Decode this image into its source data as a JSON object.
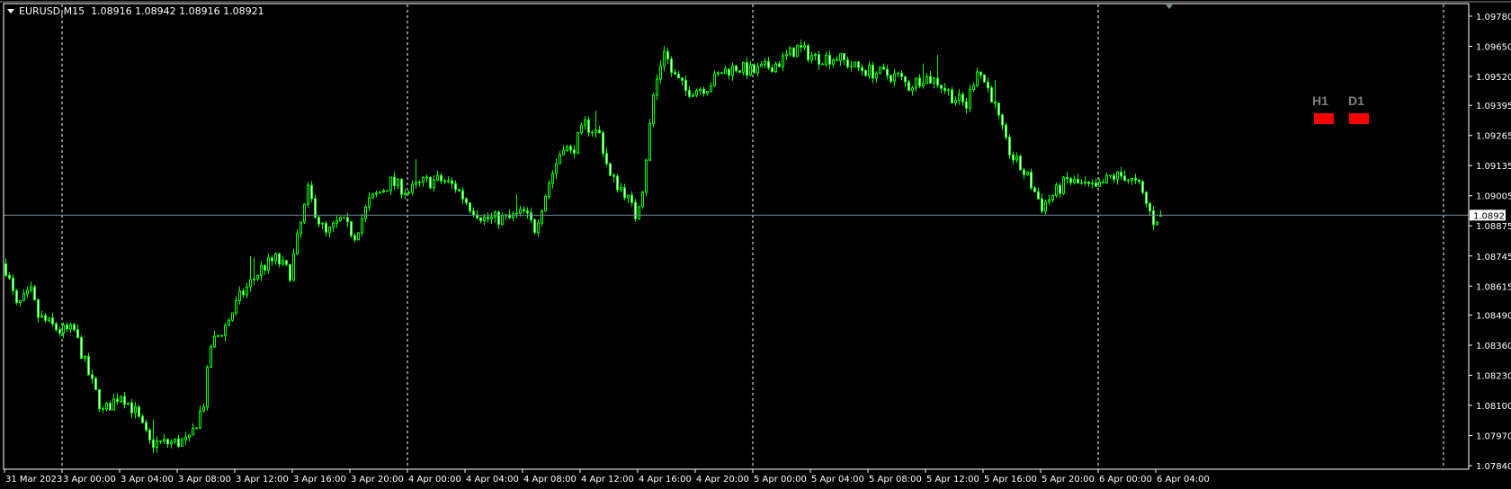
{
  "header": {
    "symbol": "EURUSD,M15",
    "ohlc": "1.08916 1.08942 1.08916 1.08921"
  },
  "indicators": [
    {
      "label": "H1",
      "color": "#ff0000"
    },
    {
      "label": "D1",
      "color": "#ff0000"
    }
  ],
  "colors": {
    "background": "#000000",
    "candle": "#00ff00",
    "bull_body": "#000000",
    "bear_body": "#ffffff",
    "grid": "#ffffff",
    "price_line": "#778899"
  },
  "chart_data": {
    "type": "candlestick",
    "symbol": "EURUSD",
    "timeframe": "M15",
    "ylim": [
      1.0784,
      1.0978
    ],
    "y_ticks": [
      "1.09780",
      "1.09650",
      "1.09520",
      "1.09395",
      "1.09265",
      "1.09135",
      "1.09005",
      "1.08875",
      "1.08745",
      "1.08615",
      "1.08490",
      "1.08360",
      "1.08230",
      "1.08100",
      "1.07970",
      "1.07840"
    ],
    "x_ticks": [
      "31 Mar 2023",
      "3 Apr 00:00",
      "3 Apr 04:00",
      "3 Apr 08:00",
      "3 Apr 12:00",
      "3 Apr 16:00",
      "3 Apr 20:00",
      "4 Apr 00:00",
      "4 Apr 04:00",
      "4 Apr 08:00",
      "4 Apr 12:00",
      "4 Apr 16:00",
      "4 Apr 20:00",
      "5 Apr 00:00",
      "5 Apr 04:00",
      "5 Apr 08:00",
      "5 Apr 12:00",
      "5 Apr 16:00",
      "5 Apr 20:00",
      "6 Apr 00:00",
      "6 Apr 04:00"
    ],
    "current_price": "1.08921",
    "last_bar": {
      "open": 1.08916,
      "high": 1.08942,
      "low": 1.08916,
      "close": 1.08921
    },
    "close_path": [
      [
        "2023-03-31 20:00",
        1.08691
      ],
      [
        "2023-03-31 20:45",
        1.08525
      ],
      [
        "2023-03-31 21:45",
        1.08587
      ],
      [
        "2023-03-31 22:15",
        1.08484
      ],
      [
        "2023-03-31 23:45",
        1.08422
      ],
      [
        "2023-04-03 00:45",
        1.08422
      ],
      [
        "2023-04-03 01:45",
        1.08235
      ],
      [
        "2023-04-03 02:45",
        1.0807
      ],
      [
        "2023-04-03 04:00",
        1.08152
      ],
      [
        "2023-04-03 05:00",
        1.0807
      ],
      [
        "2023-04-03 06:00",
        1.07937
      ],
      [
        "2023-04-03 07:15",
        1.07937
      ],
      [
        "2023-04-03 08:45",
        1.07945
      ],
      [
        "2023-04-03 09:45",
        1.08111
      ],
      [
        "2023-04-03 10:15",
        1.08359
      ],
      [
        "2023-04-03 11:15",
        1.08442
      ],
      [
        "2023-04-03 12:15",
        1.08566
      ],
      [
        "2023-04-03 13:45",
        1.08691
      ],
      [
        "2023-04-03 14:45",
        1.08732
      ],
      [
        "2023-04-03 15:45",
        1.0867
      ],
      [
        "2023-04-03 16:15",
        1.08815
      ],
      [
        "2023-04-03 17:00",
        1.09022
      ],
      [
        "2023-04-03 17:45",
        1.08898
      ],
      [
        "2023-04-03 18:15",
        1.08836
      ],
      [
        "2023-04-03 19:15",
        1.08898
      ],
      [
        "2023-04-03 20:15",
        1.08836
      ],
      [
        "2023-04-03 21:15",
        1.0898
      ],
      [
        "2023-04-03 22:45",
        1.09063
      ],
      [
        "2023-04-04 00:00",
        1.09022
      ],
      [
        "2023-04-04 01:00",
        1.09063
      ],
      [
        "2023-04-04 02:15",
        1.09072
      ],
      [
        "2023-04-04 03:15",
        1.09043
      ],
      [
        "2023-04-04 04:15",
        1.0896
      ],
      [
        "2023-04-04 05:15",
        1.08906
      ],
      [
        "2023-04-04 07:00",
        1.08906
      ],
      [
        "2023-04-04 08:00",
        1.08931
      ],
      [
        "2023-04-04 08:45",
        1.08865
      ],
      [
        "2023-04-04 09:45",
        1.09063
      ],
      [
        "2023-04-04 10:45",
        1.09229
      ],
      [
        "2023-04-04 11:15",
        1.09187
      ],
      [
        "2023-04-04 12:15",
        1.09312
      ],
      [
        "2023-04-04 13:15",
        1.0927
      ],
      [
        "2023-04-04 14:00",
        1.09084
      ],
      [
        "2023-04-04 15:00",
        1.09022
      ],
      [
        "2023-04-04 15:45",
        1.08918
      ],
      [
        "2023-04-04 16:15",
        1.09043
      ],
      [
        "2023-04-04 17:00",
        1.09436
      ],
      [
        "2023-04-04 17:45",
        1.09643
      ],
      [
        "2023-04-04 18:15",
        1.09539
      ],
      [
        "2023-04-04 19:15",
        1.09457
      ],
      [
        "2023-04-04 20:45",
        1.09477
      ],
      [
        "2023-04-04 21:45",
        1.09539
      ],
      [
        "2023-04-04 22:45",
        1.0956
      ],
      [
        "2023-04-05 00:00",
        1.09539
      ],
      [
        "2023-04-05 01:45",
        1.09581
      ],
      [
        "2023-04-05 03:00",
        1.09643
      ],
      [
        "2023-04-05 04:15",
        1.09601
      ],
      [
        "2023-04-05 05:45",
        1.09601
      ],
      [
        "2023-04-05 07:00",
        1.0956
      ],
      [
        "2023-04-05 08:15",
        1.09539
      ],
      [
        "2023-04-05 10:00",
        1.09519
      ],
      [
        "2023-04-05 10:45",
        1.09477
      ],
      [
        "2023-04-05 11:45",
        1.09519
      ],
      [
        "2023-04-05 12:45",
        1.09498
      ],
      [
        "2023-04-05 13:45",
        1.09436
      ],
      [
        "2023-04-05 14:45",
        1.09394
      ],
      [
        "2023-04-05 15:30",
        1.0956
      ],
      [
        "2023-04-05 16:30",
        1.09436
      ],
      [
        "2023-04-05 17:30",
        1.09229
      ],
      [
        "2023-04-05 18:00",
        1.09167
      ],
      [
        "2023-04-05 19:00",
        1.09084
      ],
      [
        "2023-04-05 20:00",
        1.0896
      ],
      [
        "2023-04-05 21:00",
        1.09022
      ],
      [
        "2023-04-05 21:45",
        1.09072
      ],
      [
        "2023-04-05 22:45",
        1.09051
      ],
      [
        "2023-04-05 23:45",
        1.0903
      ],
      [
        "2023-04-06 00:45",
        1.09084
      ],
      [
        "2023-04-06 01:45",
        1.09092
      ],
      [
        "2023-04-06 02:45",
        1.09043
      ],
      [
        "2023-04-06 03:45",
        1.08898
      ],
      [
        "2023-04-06 04:15",
        1.08921
      ]
    ]
  }
}
